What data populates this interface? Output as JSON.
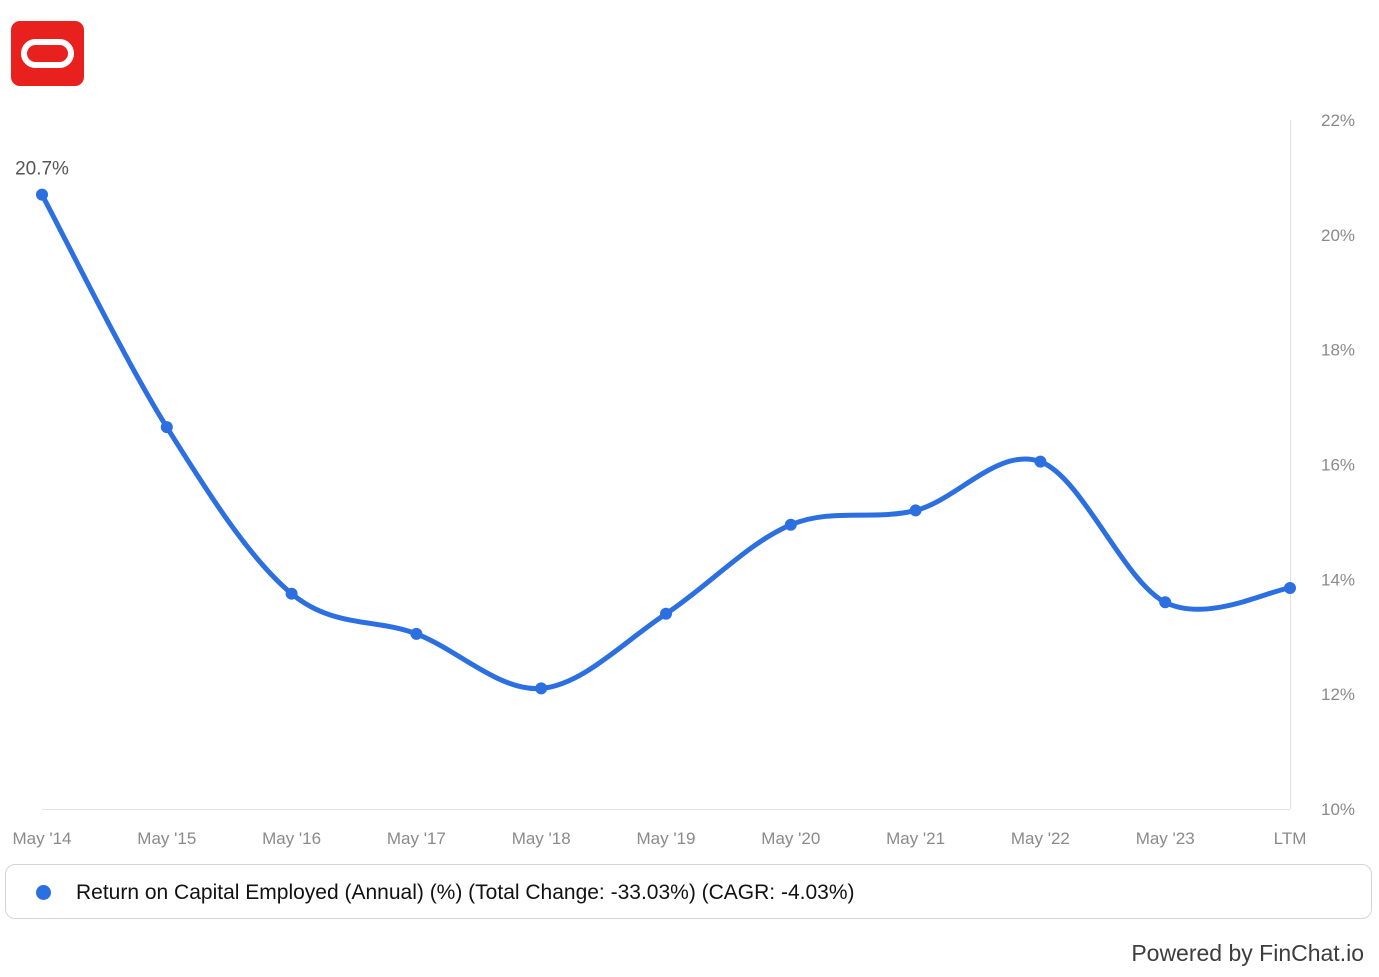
{
  "brand": {
    "logo_color": "#e8211e",
    "logo_icon": "oracle-logo-icon"
  },
  "chart_data": {
    "type": "line",
    "categories": [
      "May '14",
      "May '15",
      "May '16",
      "May '17",
      "May '18",
      "May '19",
      "May '20",
      "May '21",
      "May '22",
      "May '23",
      "LTM"
    ],
    "series": [
      {
        "name": "Return on Capital Employed (Annual) (%) (Total Change: -33.03%) (CAGR: -4.03%)",
        "values": [
          20.7,
          16.65,
          13.75,
          13.05,
          12.1,
          13.4,
          14.95,
          15.2,
          16.05,
          13.6,
          13.85
        ],
        "color": "#2b6fe0"
      }
    ],
    "data_labels": [
      {
        "index": 0,
        "text": "20.7%"
      }
    ],
    "y_ticks": [
      "22%",
      "20%",
      "18%",
      "16%",
      "14%",
      "12%",
      "10%"
    ],
    "y_tick_values": [
      22,
      20,
      18,
      16,
      14,
      12,
      10
    ],
    "ylim": [
      10,
      22
    ],
    "y_axis_position": "right",
    "grid": false,
    "legend_position": "bottom",
    "title": "",
    "xlabel": "",
    "ylabel": ""
  },
  "footer": {
    "attribution": "Powered by FinChat.io"
  }
}
